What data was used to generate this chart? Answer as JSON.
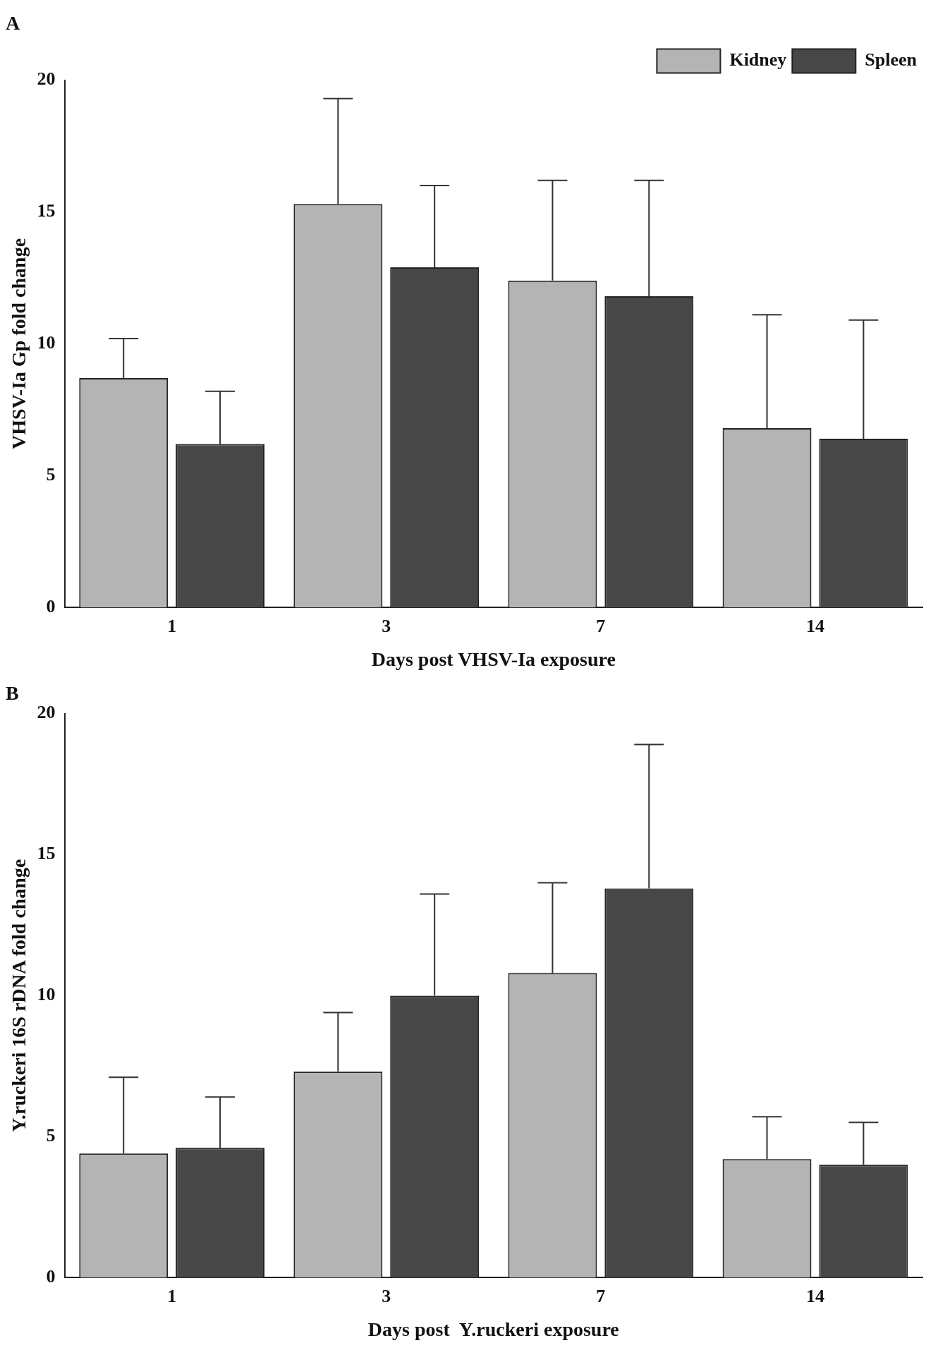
{
  "chart_data": [
    {
      "type": "bar",
      "title": "A",
      "xlabel": "Days post VHSV-Ia exposure",
      "ylabel": "VHSV-Ia Gp fold change",
      "categories": [
        "1",
        "3",
        "7",
        "14"
      ],
      "series": [
        {
          "name": "Kidney",
          "color": "#b4b4b4",
          "values": [
            8.7,
            15.3,
            12.4,
            6.8
          ],
          "errors": [
            [
              8.7,
              10.2
            ],
            [
              15.3,
              19.3
            ],
            [
              12.4,
              16.2
            ],
            [
              6.8,
              11.1
            ]
          ]
        },
        {
          "name": "Spleen",
          "color": "#474747",
          "values": [
            6.2,
            12.9,
            11.8,
            6.4
          ],
          "errors": [
            [
              6.2,
              8.2
            ],
            [
              12.9,
              16.0
            ],
            [
              11.8,
              16.2
            ],
            [
              6.4,
              10.9
            ]
          ]
        }
      ],
      "ylim": [
        0,
        20
      ],
      "yticks": [
        0,
        5,
        10,
        15,
        20
      ],
      "grid": false,
      "legend": "top right"
    },
    {
      "type": "bar",
      "title": "B",
      "xlabel": "Days post  Y.ruckeri exposure",
      "ylabel": "Y.ruckeri 16S rDNA fold change",
      "categories": [
        "1",
        "3",
        "7",
        "14"
      ],
      "series": [
        {
          "color": "#b4b4b4",
          "values": [
            4.4,
            7.3,
            10.8,
            4.2
          ],
          "errors": [
            [
              4.4,
              7.1
            ],
            [
              7.3,
              9.4
            ],
            [
              10.8,
              14.0
            ],
            [
              4.2,
              5.7
            ]
          ]
        },
        {
          "color": "#474747",
          "values": [
            4.6,
            10.0,
            13.8,
            4.0
          ],
          "errors": [
            [
              4.6,
              6.4
            ],
            [
              10.0,
              13.6
            ],
            [
              13.8,
              18.9
            ],
            [
              4.0,
              5.5
            ]
          ]
        }
      ],
      "ylim": [
        0,
        20
      ],
      "yticks": [
        0,
        5,
        10,
        15,
        20
      ],
      "grid": false,
      "legend": false
    }
  ]
}
